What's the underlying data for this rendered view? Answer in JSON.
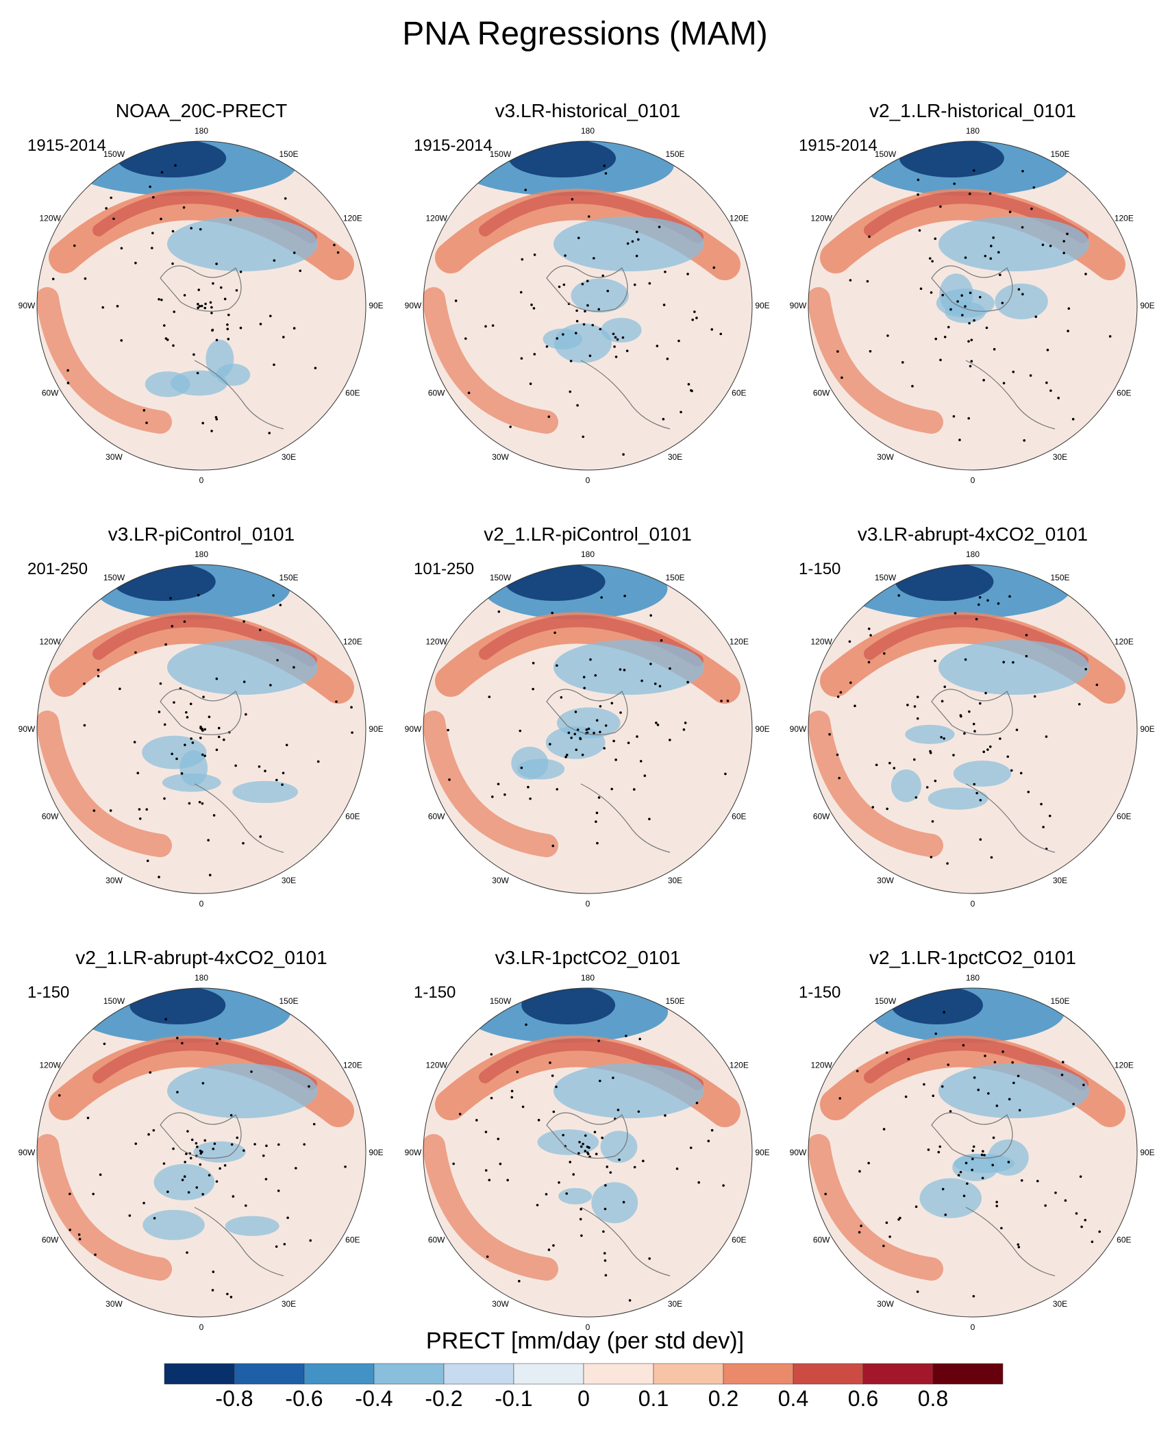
{
  "chart_data": {
    "type": "polar contour map grid",
    "title": "PNA Regressions (MAM)",
    "variable_label": "PRECT [mm/day (per std dev)]",
    "colorbar": {
      "levels": [
        "-0.8",
        "-0.6",
        "-0.4",
        "-0.2",
        "-0.1",
        "0",
        "0.1",
        "0.2",
        "0.4",
        "0.6",
        "0.8"
      ],
      "colors": [
        "#08306b",
        "#1f5fa8",
        "#4292c6",
        "#89bedc",
        "#c6dbef",
        "#e4eef4",
        "#fbe6dc",
        "#f7c4a8",
        "#ea8a6b",
        "#cc4c44",
        "#a3172b",
        "#67000d"
      ]
    },
    "longitude_labels": [
      "180",
      "150E",
      "120E",
      "90E",
      "60E",
      "30E",
      "0",
      "30W",
      "60W",
      "90W",
      "120W",
      "150W"
    ],
    "panels": [
      {
        "title": "NOAA_20C-PRECT",
        "period": "1915-2014"
      },
      {
        "title": "v3.LR-historical_0101",
        "period": "1915-2014"
      },
      {
        "title": "v2_1.LR-historical_0101",
        "period": "1915-2014"
      },
      {
        "title": "v3.LR-piControl_0101",
        "period": "201-250"
      },
      {
        "title": "v2_1.LR-piControl_0101",
        "period": "101-250"
      },
      {
        "title": "v3.LR-abrupt-4xCO2_0101",
        "period": "1-150"
      },
      {
        "title": "v2_1.LR-abrupt-4xCO2_0101",
        "period": "1-150"
      },
      {
        "title": "v3.LR-1pctCO2_0101",
        "period": "1-150"
      },
      {
        "title": "v2_1.LR-1pctCO2_0101",
        "period": "1-150"
      }
    ]
  }
}
